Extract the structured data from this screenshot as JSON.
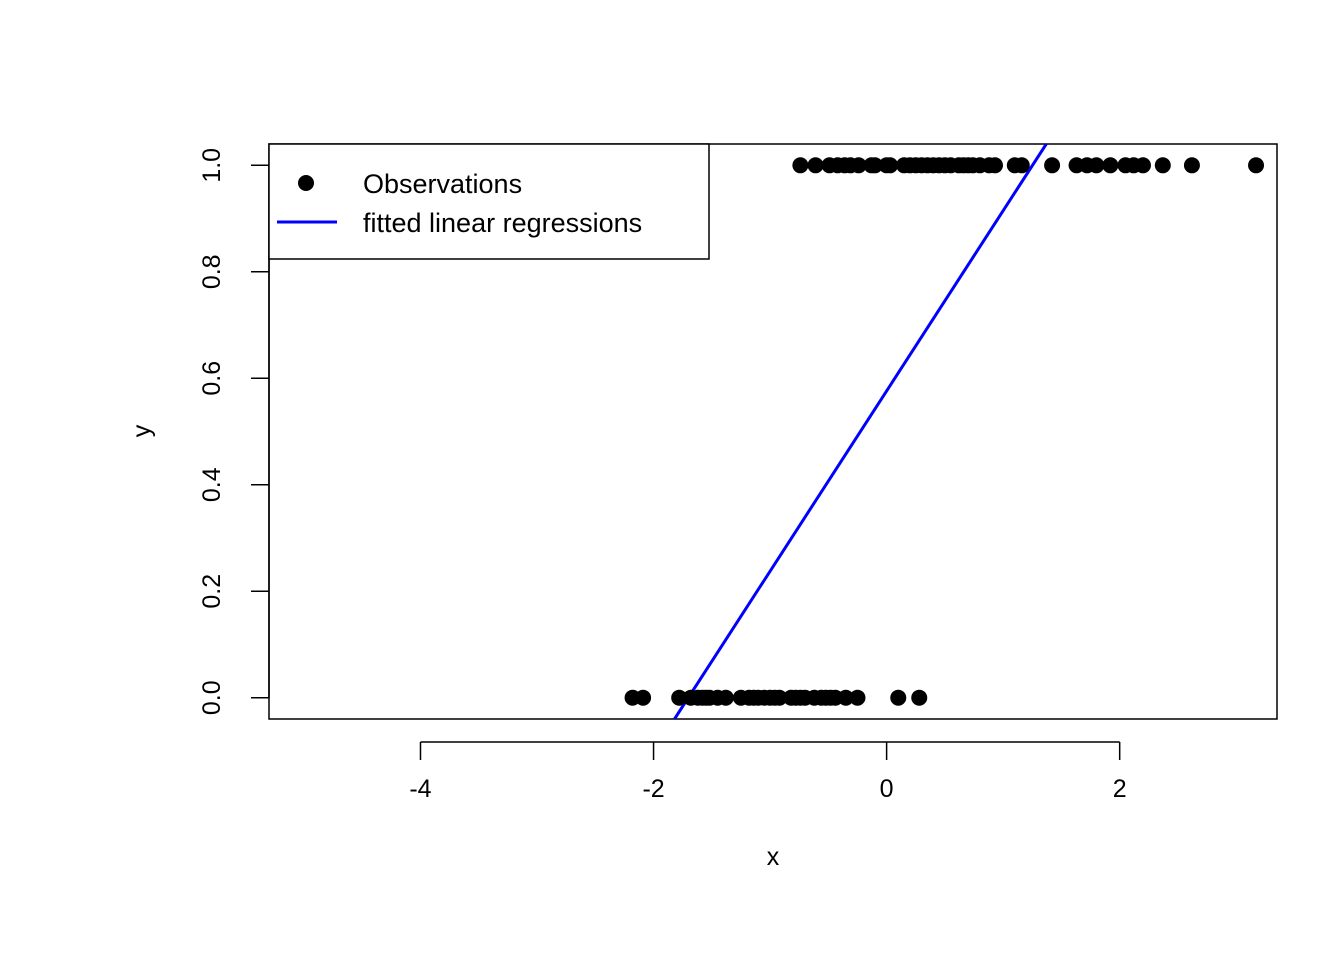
{
  "chart_data": {
    "type": "scatter",
    "title": "",
    "xlabel": "x",
    "ylabel": "y",
    "xlim": [
      -5.3,
      3.35
    ],
    "ylim": [
      -0.04,
      1.04
    ],
    "x_ticks": [
      -4,
      -2,
      0,
      2
    ],
    "x_tick_labels": [
      "-4",
      "-2",
      "0",
      "2"
    ],
    "y_ticks": [
      0.0,
      0.2,
      0.4,
      0.6,
      0.8,
      1.0
    ],
    "y_tick_labels": [
      "0.0",
      "0.2",
      "0.4",
      "0.6",
      "0.8",
      "1.0"
    ],
    "grid": false,
    "legend": {
      "position": "top-left",
      "entries": [
        "Observations",
        "fitted linear regressions"
      ]
    },
    "series": [
      {
        "name": "Observations",
        "kind": "points",
        "color": "#000000",
        "points": [
          {
            "x": -2.18,
            "y": 0
          },
          {
            "x": -2.09,
            "y": 0
          },
          {
            "x": -1.78,
            "y": 0
          },
          {
            "x": -1.68,
            "y": 0
          },
          {
            "x": -1.62,
            "y": 0
          },
          {
            "x": -1.58,
            "y": 0
          },
          {
            "x": -1.55,
            "y": 0
          },
          {
            "x": -1.52,
            "y": 0
          },
          {
            "x": -1.45,
            "y": 0
          },
          {
            "x": -1.38,
            "y": 0
          },
          {
            "x": -1.25,
            "y": 0
          },
          {
            "x": -1.18,
            "y": 0
          },
          {
            "x": -1.14,
            "y": 0
          },
          {
            "x": -1.1,
            "y": 0
          },
          {
            "x": -1.05,
            "y": 0
          },
          {
            "x": -1.0,
            "y": 0
          },
          {
            "x": -0.96,
            "y": 0
          },
          {
            "x": -0.92,
            "y": 0
          },
          {
            "x": -0.82,
            "y": 0
          },
          {
            "x": -0.78,
            "y": 0
          },
          {
            "x": -0.74,
            "y": 0
          },
          {
            "x": -0.7,
            "y": 0
          },
          {
            "x": -0.62,
            "y": 0
          },
          {
            "x": -0.56,
            "y": 0
          },
          {
            "x": -0.52,
            "y": 0
          },
          {
            "x": -0.48,
            "y": 0
          },
          {
            "x": -0.44,
            "y": 0
          },
          {
            "x": -0.35,
            "y": 0
          },
          {
            "x": -0.25,
            "y": 0
          },
          {
            "x": 0.1,
            "y": 0
          },
          {
            "x": 0.28,
            "y": 0
          },
          {
            "x": -0.74,
            "y": 1
          },
          {
            "x": -0.61,
            "y": 1
          },
          {
            "x": -0.49,
            "y": 1
          },
          {
            "x": -0.42,
            "y": 1
          },
          {
            "x": -0.36,
            "y": 1
          },
          {
            "x": -0.31,
            "y": 1
          },
          {
            "x": -0.24,
            "y": 1
          },
          {
            "x": -0.13,
            "y": 1
          },
          {
            "x": -0.1,
            "y": 1
          },
          {
            "x": 0.0,
            "y": 1
          },
          {
            "x": 0.03,
            "y": 1
          },
          {
            "x": 0.15,
            "y": 1
          },
          {
            "x": 0.2,
            "y": 1
          },
          {
            "x": 0.25,
            "y": 1
          },
          {
            "x": 0.3,
            "y": 1
          },
          {
            "x": 0.35,
            "y": 1
          },
          {
            "x": 0.4,
            "y": 1
          },
          {
            "x": 0.45,
            "y": 1
          },
          {
            "x": 0.5,
            "y": 1
          },
          {
            "x": 0.55,
            "y": 1
          },
          {
            "x": 0.62,
            "y": 1
          },
          {
            "x": 0.66,
            "y": 1
          },
          {
            "x": 0.7,
            "y": 1
          },
          {
            "x": 0.74,
            "y": 1
          },
          {
            "x": 0.8,
            "y": 1
          },
          {
            "x": 0.88,
            "y": 1
          },
          {
            "x": 0.93,
            "y": 1
          },
          {
            "x": 1.1,
            "y": 1
          },
          {
            "x": 1.16,
            "y": 1
          },
          {
            "x": 1.42,
            "y": 1
          },
          {
            "x": 1.63,
            "y": 1
          },
          {
            "x": 1.72,
            "y": 1
          },
          {
            "x": 1.8,
            "y": 1
          },
          {
            "x": 1.92,
            "y": 1
          },
          {
            "x": 2.05,
            "y": 1
          },
          {
            "x": 2.12,
            "y": 1
          },
          {
            "x": 2.2,
            "y": 1
          },
          {
            "x": 2.37,
            "y": 1
          },
          {
            "x": 2.62,
            "y": 1
          },
          {
            "x": 3.17,
            "y": 1
          }
        ]
      },
      {
        "name": "fitted linear regressions",
        "kind": "line",
        "color": "#0000ff",
        "points": [
          {
            "x": -1.82,
            "y": -0.04
          },
          {
            "x": 1.37,
            "y": 1.04
          }
        ]
      }
    ]
  }
}
